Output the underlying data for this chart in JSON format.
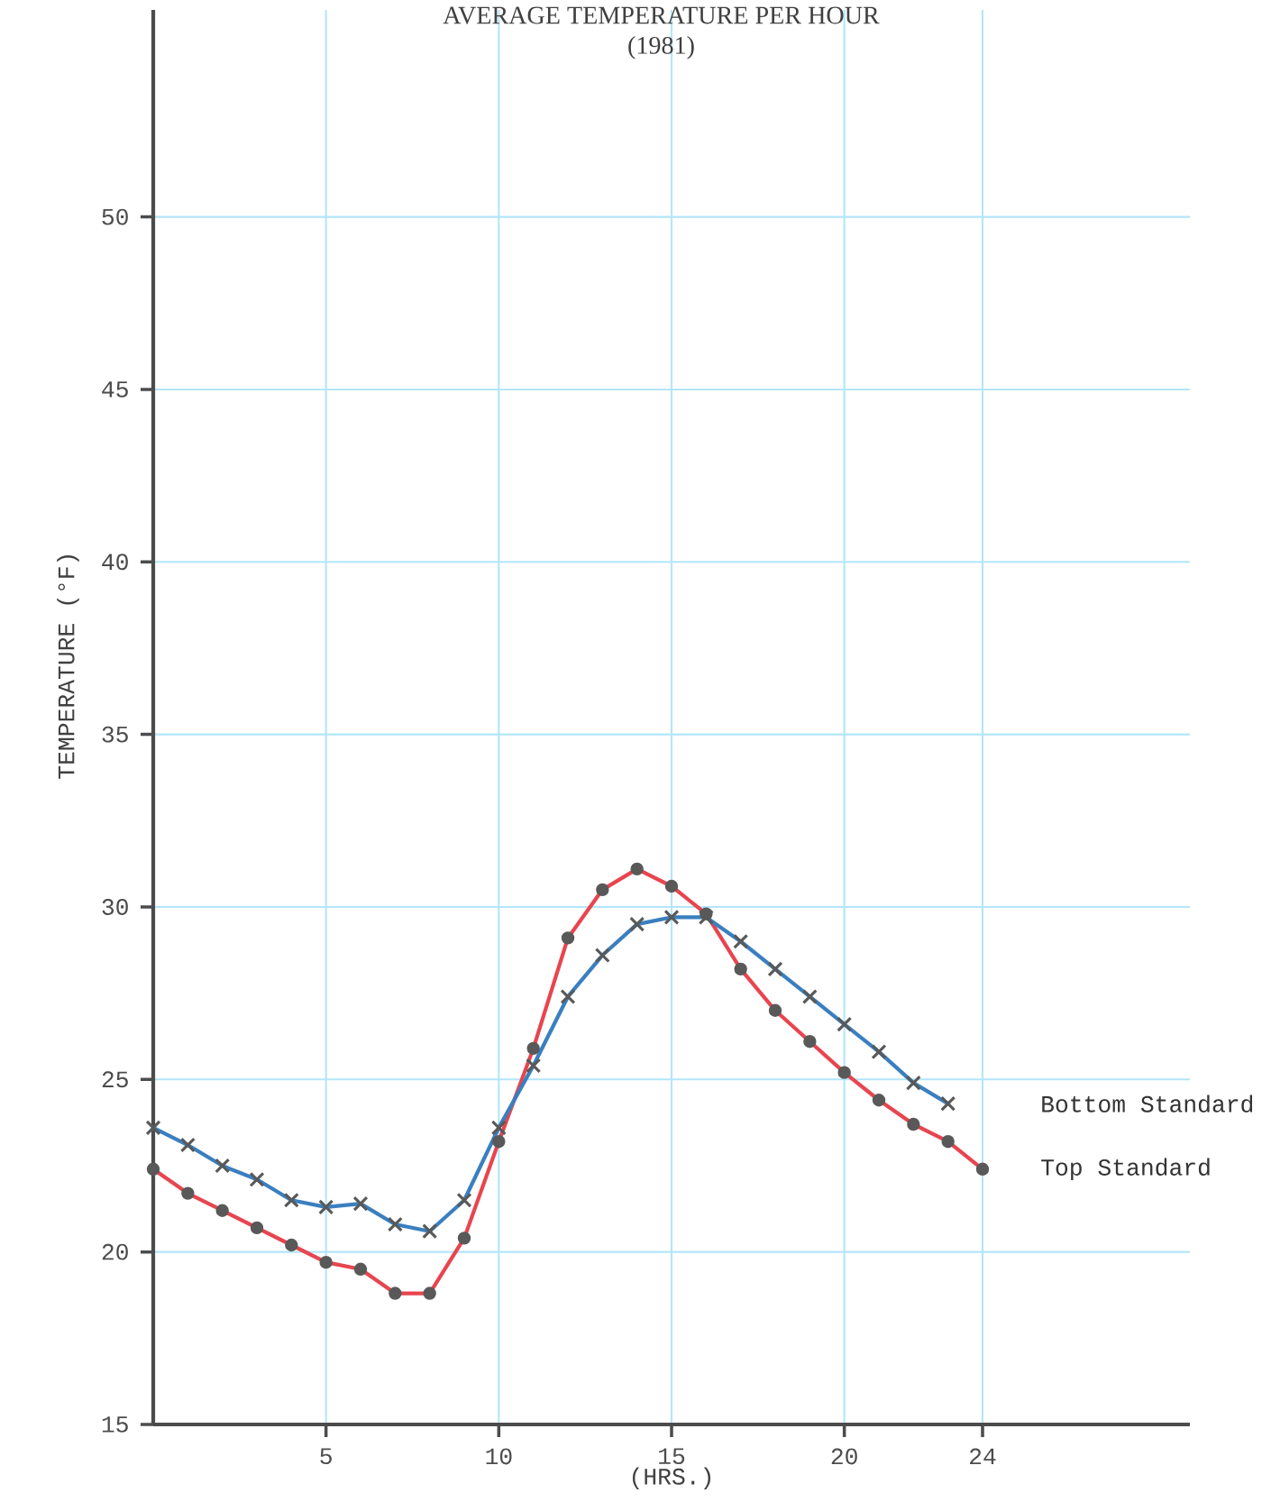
{
  "chart_data": {
    "type": "line",
    "title": "AVERAGE TEMPERATURE PER HOUR",
    "subtitle": "(1981)",
    "xlabel": "(HRS.)",
    "ylabel": "TEMPERATURE (°F)",
    "x": [
      0,
      1,
      2,
      3,
      4,
      5,
      6,
      7,
      8,
      9,
      10,
      11,
      12,
      13,
      14,
      15,
      16,
      17,
      18,
      19,
      20,
      21,
      22,
      23,
      24
    ],
    "series": [
      {
        "name": "Bottom Standard",
        "color": "#3a7fc0",
        "marker": "cross",
        "values": [
          23.6,
          23.1,
          22.5,
          22.1,
          21.5,
          21.3,
          21.4,
          20.8,
          20.6,
          21.5,
          23.6,
          25.4,
          27.4,
          28.6,
          29.5,
          29.7,
          29.7,
          29.0,
          28.2,
          27.4,
          26.6,
          25.8,
          24.9,
          24.3,
          null
        ]
      },
      {
        "name": "Top Standard",
        "color": "#e8454f",
        "marker": "circle",
        "values": [
          22.4,
          21.7,
          21.2,
          20.7,
          20.2,
          19.7,
          19.5,
          18.8,
          18.8,
          20.4,
          23.2,
          25.9,
          29.1,
          30.5,
          31.1,
          30.6,
          29.8,
          28.2,
          27.0,
          26.1,
          25.2,
          24.4,
          23.7,
          23.2,
          22.4
        ]
      }
    ],
    "xlim": [
      0,
      30
    ],
    "ylim": [
      15,
      56
    ],
    "xticks": [
      5,
      10,
      15,
      20,
      24
    ],
    "yticks": [
      15,
      20,
      25,
      30,
      35,
      40,
      45,
      50
    ],
    "grid": true,
    "line_style": "solid"
  }
}
